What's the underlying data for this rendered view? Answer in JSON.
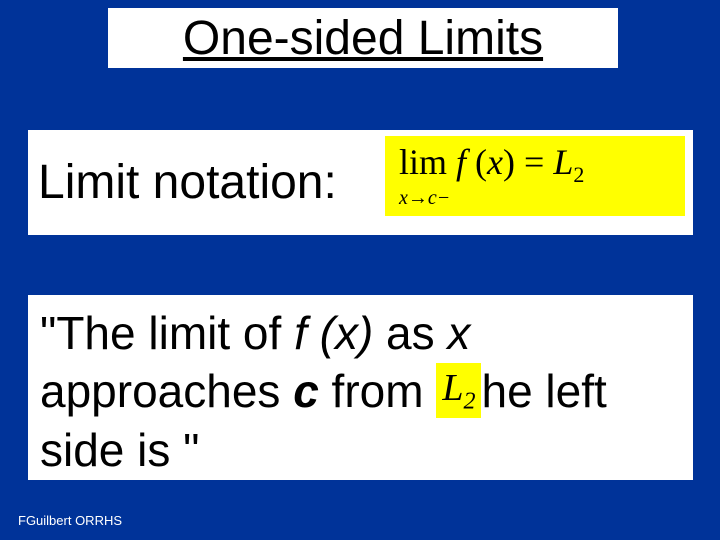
{
  "slide": {
    "title": "One-sided Limits",
    "notation_label": "Limit notation:",
    "math": {
      "main": "lim f (x) = L",
      "main_sub": "2",
      "subscript": "x→c−"
    },
    "description_prefix": "\"The limit of ",
    "fx": "f (x)",
    "as": " as ",
    "x": "x",
    "approaches": " approaches ",
    "c": "c",
    "from": "  from ",
    "l2_L": "L",
    "l2_2": "2",
    "the_left": "he left side is      \"",
    "footer": "FGuilbert ORRHS"
  },
  "style": {
    "background_color": "#003399",
    "box_bg": "#ffffff",
    "highlight_bg": "#ffff00",
    "text_color": "#000000",
    "footer_color": "#ffffff",
    "title_fontsize": 48,
    "body_fontsize": 46,
    "math_fontsize": 36
  }
}
